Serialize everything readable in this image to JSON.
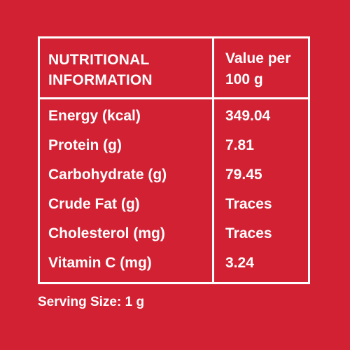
{
  "colors": {
    "background": "#d22133",
    "foreground": "#ffffff"
  },
  "table": {
    "header_left": "NUTRITIONAL INFORMATION",
    "header_right": "Value per 100 g",
    "rows": [
      {
        "label": "Energy (kcal)",
        "value": "349.04"
      },
      {
        "label": "Protein (g)",
        "value": "7.81"
      },
      {
        "label": "Carbohydrate (g)",
        "value": "79.45"
      },
      {
        "label": "Crude Fat (g)",
        "value": "Traces"
      },
      {
        "label": "Cholesterol (mg)",
        "value": "Traces"
      },
      {
        "label": "Vitamin C (mg)",
        "value": "3.24"
      }
    ]
  },
  "serving_size": "Serving Size: 1 g"
}
